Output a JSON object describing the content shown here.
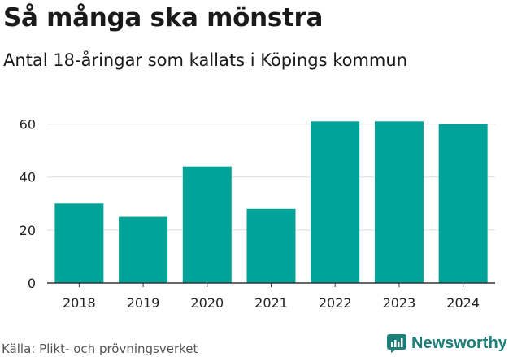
{
  "colors": {
    "bar": "#00a398",
    "grid": "#dddddd",
    "axis": "#333333",
    "brand": "#1d7f79"
  },
  "source": "Källa: Plikt- och prövningsverket",
  "brand": {
    "name": "Newsworthy",
    "icon": "newsworthy-logo-icon"
  },
  "chart_data": {
    "type": "bar",
    "title": "Så många ska mönstra",
    "subtitle": "Antal 18-åringar som kallats i Köpings kommun",
    "categories": [
      "2018",
      "2019",
      "2020",
      "2021",
      "2022",
      "2023",
      "2024"
    ],
    "values": [
      30,
      25,
      44,
      28,
      61,
      61,
      60
    ],
    "ylim": [
      0,
      70
    ],
    "yticks": [
      0,
      20,
      40,
      60
    ],
    "xlabel": "",
    "ylabel": "",
    "grid": true
  }
}
